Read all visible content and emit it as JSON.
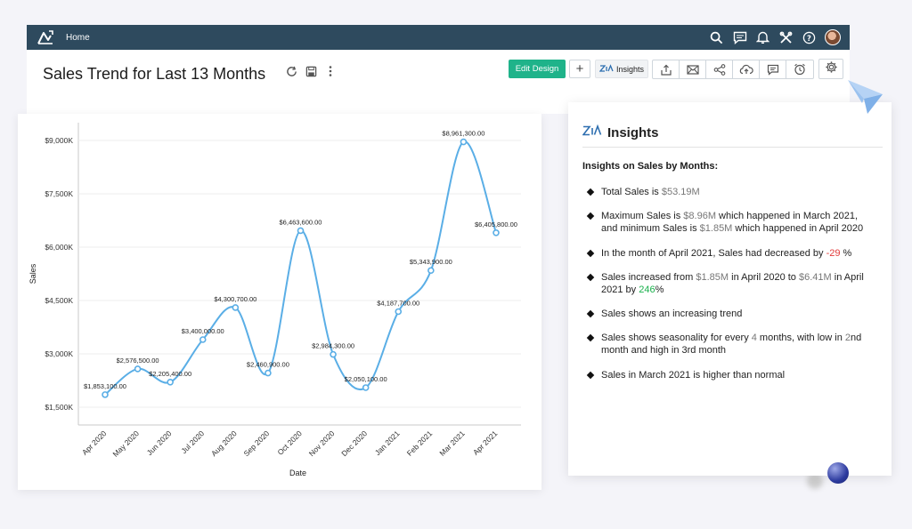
{
  "app": {
    "nav_home": "Home"
  },
  "report": {
    "title": "Sales Trend for Last 13 Months"
  },
  "toolbar": {
    "edit_design": "Edit Design",
    "add": "+",
    "insights": "Insights"
  },
  "icons": {
    "logo": "analytics-logo-icon",
    "search": "search-icon",
    "comments": "comment-icon",
    "notifications": "bell-icon",
    "tools": "tools-icon",
    "help": "help-icon",
    "refresh": "refresh-icon",
    "save": "save-icon",
    "more": "more-vertical-icon",
    "export": "export-icon",
    "email": "email-icon",
    "share": "share-icon",
    "publish": "cloud-upload-icon",
    "discuss": "discuss-icon",
    "schedule": "alarm-icon",
    "settings": "gear-icon",
    "zia": "zia-icon"
  },
  "colors": {
    "topbar": "#2e4a5e",
    "accent": "#1fb38a",
    "line": "#5aaee6",
    "negative": "#e23c3c",
    "positive": "#19b04b"
  },
  "chart_data": {
    "type": "line",
    "xlabel": "Date",
    "ylabel": "Sales",
    "categories": [
      "Apr 2020",
      "May 2020",
      "Jun 2020",
      "Jul 2020",
      "Aug 2020",
      "Sep 2020",
      "Oct 2020",
      "Nov 2020",
      "Dec 2020",
      "Jan 2021",
      "Feb 2021",
      "Mar 2021",
      "Apr 2021"
    ],
    "values": [
      1853100,
      2576500,
      2205400,
      3400000,
      4300700,
      2460900,
      6463600,
      2984300,
      2050100,
      4187700,
      5343900,
      8961300,
      6405800
    ],
    "data_labels": [
      "$1,853,100.00",
      "$2,576,500.00",
      "$2,205,400.00",
      "$3,400,000.00",
      "$4,300,700.00",
      "$2,460,900.00",
      "$6,463,600.00",
      "$2,984,300.00",
      "$2,050,100.00",
      "$4,187,700.00",
      "$5,343,900.00",
      "$8,961,300.00",
      "$6,405,800.00"
    ],
    "y_ticks": [
      1500000,
      3000000,
      4500000,
      6000000,
      7500000,
      9000000
    ],
    "y_tick_labels": [
      "$1,500K",
      "$3,000K",
      "$4,500K",
      "$6,000K",
      "$7,500K",
      "$9,000K"
    ],
    "ylim": [
      1000000,
      9500000
    ],
    "grid": true,
    "legend": "none"
  },
  "insights": {
    "title": "Insights",
    "subtitle": "Insights on Sales by Months:",
    "items": [
      {
        "parts": [
          {
            "t": "Total Sales is "
          },
          {
            "t": "$53.19M",
            "c": "gray"
          }
        ]
      },
      {
        "parts": [
          {
            "t": "Maximum Sales is "
          },
          {
            "t": "$8.96M",
            "c": "gray"
          },
          {
            "t": " which happened in March 2021, and minimum Sales is "
          },
          {
            "t": "$1.85M",
            "c": "gray"
          },
          {
            "t": " which happened in April 2020"
          }
        ]
      },
      {
        "parts": [
          {
            "t": " In the month of April 2021, Sales had decreased by "
          },
          {
            "t": "-29",
            "c": "red"
          },
          {
            "t": " %"
          }
        ]
      },
      {
        "parts": [
          {
            "t": "Sales increased from "
          },
          {
            "t": " $1.85M",
            "c": "gray"
          },
          {
            "t": "  in April 2020 to "
          },
          {
            "t": " $6.41M",
            "c": "gray"
          },
          {
            "t": " in April 2021 by "
          },
          {
            "t": "246",
            "c": "green"
          },
          {
            "t": "%"
          }
        ]
      },
      {
        "parts": [
          {
            "t": "Sales shows an increasing trend"
          }
        ]
      },
      {
        "parts": [
          {
            "t": "Sales shows seasonality for every "
          },
          {
            "t": "4",
            "c": "gray"
          },
          {
            "t": " months, with low in "
          },
          {
            "t": "2",
            "c": "gray"
          },
          {
            "t": "nd month and high in 3rd month"
          }
        ]
      },
      {
        "parts": [
          {
            "t": "Sales in March 2021 is higher than normal"
          }
        ]
      }
    ]
  }
}
